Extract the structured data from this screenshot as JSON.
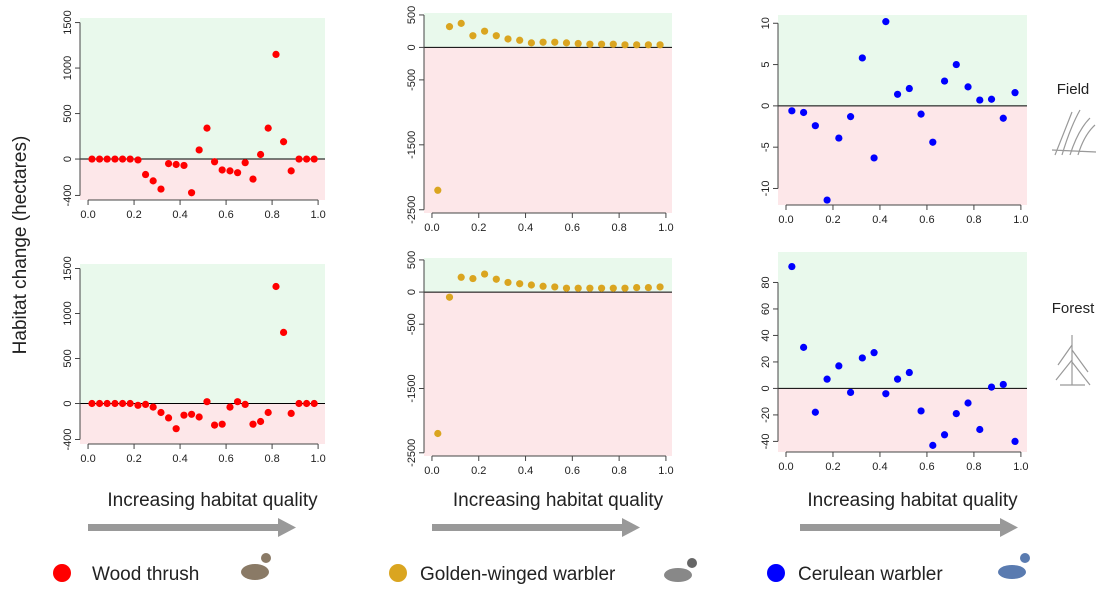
{
  "ylabel": "Habitat change (hectares)",
  "row_labels": [
    "Field",
    "Forest"
  ],
  "chart_data": [
    {
      "type": "scatter",
      "x": [
        0.017,
        0.05,
        0.083,
        0.117,
        0.15,
        0.183,
        0.217,
        0.25,
        0.283,
        0.317,
        0.35,
        0.383,
        0.417,
        0.45,
        0.483,
        0.517,
        0.55,
        0.583,
        0.617,
        0.65,
        0.683,
        0.717,
        0.75,
        0.783,
        0.817,
        0.85,
        0.883,
        0.917,
        0.95,
        0.983
      ],
      "series": [
        {
          "name": "Wood thrush",
          "color": "#ff0000",
          "values": [
            0,
            0,
            0,
            0,
            0,
            0,
            -10,
            -170,
            -240,
            -330,
            -50,
            -60,
            -70,
            -370,
            100,
            340,
            -30,
            -120,
            -130,
            -150,
            -40,
            -220,
            50,
            340,
            1150,
            190,
            -130,
            0,
            0,
            0
          ]
        }
      ],
      "xlim": [
        -0.035,
        1.03
      ],
      "ylim": [
        -450,
        1550
      ],
      "xticks": [
        {
          "value": 0,
          "label": "0.0"
        },
        0.2,
        0.4,
        0.6,
        0.8,
        {
          "value": 1,
          "label": "1.0"
        }
      ],
      "yticks": [
        -400,
        0,
        500,
        1000,
        1500
      ]
    },
    {
      "type": "scatter",
      "x": [
        0.025,
        0.075,
        0.125,
        0.175,
        0.225,
        0.275,
        0.325,
        0.375,
        0.425,
        0.475,
        0.525,
        0.575,
        0.625,
        0.675,
        0.725,
        0.775,
        0.825,
        0.875,
        0.925,
        0.975
      ],
      "series": [
        {
          "name": "Golden-winged warbler",
          "color": "#daa520",
          "values": [
            -2200,
            320,
            370,
            180,
            250,
            180,
            130,
            110,
            70,
            80,
            80,
            70,
            60,
            50,
            50,
            50,
            40,
            40,
            40,
            40
          ]
        }
      ],
      "xlim": [
        -0.034,
        1.026
      ],
      "ylim": [
        -2550,
        530
      ],
      "xticks": [
        {
          "value": 0,
          "label": "0.0"
        },
        0.2,
        0.4,
        0.6,
        0.8,
        {
          "value": 1,
          "label": "1.0"
        }
      ],
      "yticks": [
        -2500,
        -1500,
        -500,
        0,
        500
      ]
    },
    {
      "type": "scatter",
      "x": [
        0.025,
        0.075,
        0.125,
        0.175,
        0.225,
        0.275,
        0.325,
        0.375,
        0.425,
        0.475,
        0.525,
        0.575,
        0.625,
        0.675,
        0.725,
        0.775,
        0.825,
        0.875,
        0.925,
        0.975
      ],
      "series": [
        {
          "name": "Cerulean warbler",
          "color": "#0000ff",
          "values": [
            -0.6,
            -0.8,
            -2.4,
            -11.4,
            -3.9,
            -1.3,
            5.8,
            -6.3,
            10.2,
            1.4,
            2.1,
            -1.0,
            -4.4,
            3.0,
            5.0,
            2.3,
            0.7,
            0.8,
            -1.5,
            1.6
          ]
        }
      ],
      "xlim": [
        -0.034,
        1.026
      ],
      "ylim": [
        -12,
        11
      ],
      "xticks": [
        {
          "value": 0,
          "label": "0.0"
        },
        0.2,
        0.4,
        0.6,
        0.8,
        {
          "value": 1,
          "label": "1.0"
        }
      ],
      "yticks": [
        -10,
        -5,
        0,
        5,
        10
      ]
    },
    {
      "type": "scatter",
      "xlabel": "Increasing habitat quality",
      "x": [
        0.017,
        0.05,
        0.083,
        0.117,
        0.15,
        0.183,
        0.217,
        0.25,
        0.283,
        0.317,
        0.35,
        0.383,
        0.417,
        0.45,
        0.483,
        0.517,
        0.55,
        0.583,
        0.617,
        0.65,
        0.683,
        0.717,
        0.75,
        0.783,
        0.817,
        0.85,
        0.883,
        0.917,
        0.95,
        0.983
      ],
      "series": [
        {
          "name": "Wood thrush",
          "color": "#ff0000",
          "values": [
            0,
            0,
            0,
            0,
            0,
            0,
            -20,
            -10,
            -40,
            -100,
            -160,
            -280,
            -130,
            -120,
            -150,
            20,
            -240,
            -230,
            -40,
            20,
            -10,
            -230,
            -200,
            -100,
            1300,
            790,
            -110,
            0,
            0,
            0
          ]
        }
      ],
      "xlim": [
        -0.035,
        1.03
      ],
      "ylim": [
        -450,
        1550
      ],
      "xticks": [
        {
          "value": 0,
          "label": "0.0"
        },
        0.2,
        0.4,
        0.6,
        0.8,
        {
          "value": 1,
          "label": "1.0"
        }
      ],
      "yticks": [
        -400,
        0,
        500,
        1000,
        1500
      ]
    },
    {
      "type": "scatter",
      "xlabel": "Increasing habitat quality",
      "x": [
        0.025,
        0.075,
        0.125,
        0.175,
        0.225,
        0.275,
        0.325,
        0.375,
        0.425,
        0.475,
        0.525,
        0.575,
        0.625,
        0.675,
        0.725,
        0.775,
        0.825,
        0.875,
        0.925,
        0.975
      ],
      "series": [
        {
          "name": "Golden-winged warbler",
          "color": "#daa520",
          "values": [
            -2200,
            -80,
            230,
            210,
            280,
            200,
            150,
            130,
            110,
            90,
            80,
            60,
            60,
            60,
            60,
            60,
            60,
            70,
            70,
            80
          ]
        }
      ],
      "xlim": [
        -0.034,
        1.026
      ],
      "ylim": [
        -2550,
        530
      ],
      "xticks": [
        {
          "value": 0,
          "label": "0.0"
        },
        0.2,
        0.4,
        0.6,
        0.8,
        {
          "value": 1,
          "label": "1.0"
        }
      ],
      "yticks": [
        -2500,
        -1500,
        -500,
        0,
        500
      ]
    },
    {
      "type": "scatter",
      "xlabel": "Increasing habitat quality",
      "x": [
        0.025,
        0.075,
        0.125,
        0.175,
        0.225,
        0.275,
        0.325,
        0.375,
        0.425,
        0.475,
        0.525,
        0.575,
        0.625,
        0.675,
        0.725,
        0.775,
        0.825,
        0.875,
        0.925,
        0.975
      ],
      "series": [
        {
          "name": "Cerulean warbler",
          "color": "#0000ff",
          "values": [
            92,
            31,
            -18,
            7,
            17,
            -3,
            23,
            27,
            -4,
            7,
            12,
            -17,
            -43,
            -35,
            -19,
            -11,
            -31,
            1,
            3,
            -40
          ]
        }
      ],
      "xlim": [
        -0.034,
        1.026
      ],
      "ylim": [
        -48,
        103
      ],
      "xticks": [
        {
          "value": 0,
          "label": "0.0"
        },
        0.2,
        0.4,
        0.6,
        0.8,
        {
          "value": 1,
          "label": "1.0"
        }
      ],
      "yticks": [
        -40,
        -20,
        0,
        20,
        40,
        60,
        80
      ]
    }
  ]
}
